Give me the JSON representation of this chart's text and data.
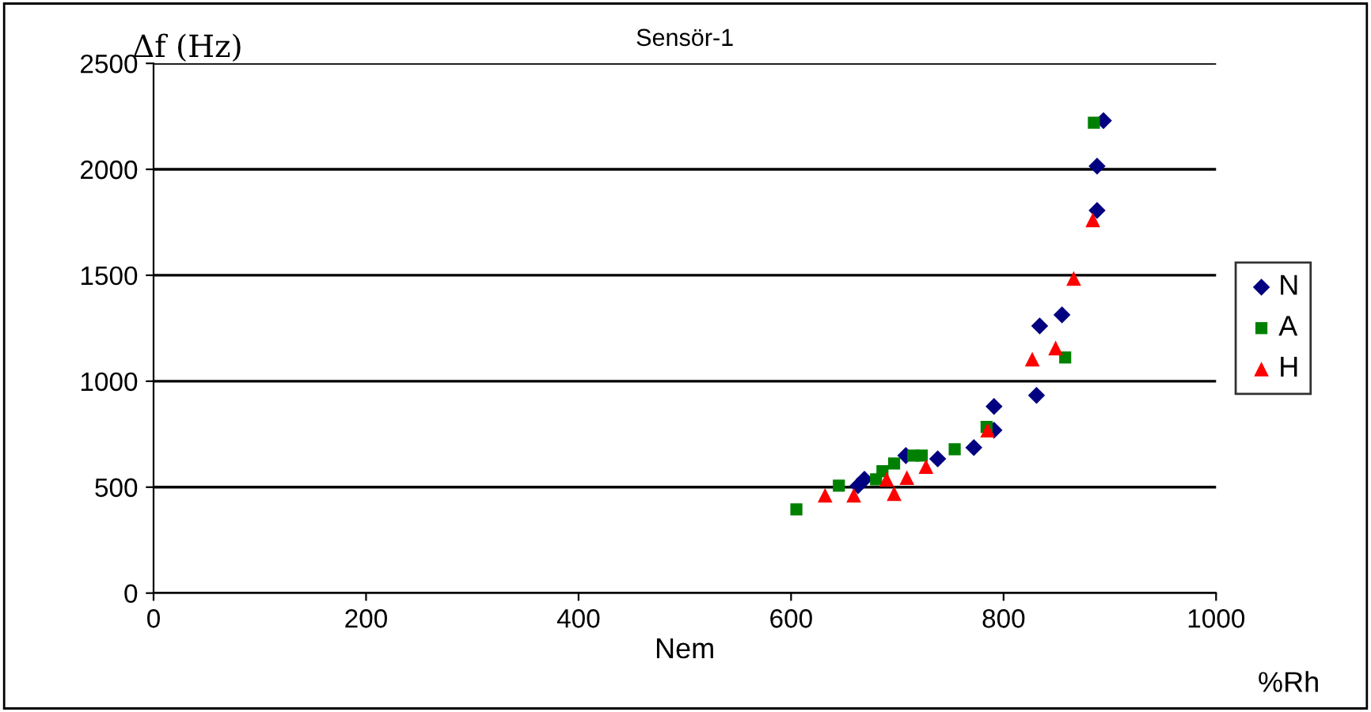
{
  "chart_data": {
    "type": "scatter",
    "title": "Sensör-1",
    "xlabel": "Nem",
    "ylabel": "Δf (Hz)",
    "annotations": [
      "%Rh"
    ],
    "xlim": [
      0,
      1000
    ],
    "xticks": [
      0,
      200,
      400,
      600,
      800,
      1000
    ],
    "ylim": [
      0,
      2500
    ],
    "yticks": [
      0,
      500,
      1000,
      1500,
      2000,
      2500
    ],
    "grid": "y",
    "legend": "right",
    "series": [
      {
        "name": "N",
        "color": "#000080",
        "marker": "diamond",
        "x": [
          894,
          888,
          888,
          855,
          834,
          831,
          663,
          669,
          708,
          738,
          772,
          791,
          791
        ],
        "values": [
          2230,
          2015,
          1806,
          1313,
          1261,
          933,
          507,
          537,
          649,
          634,
          687,
          881,
          769
        ]
      },
      {
        "name": "A",
        "color": "#008000",
        "marker": "square",
        "x": [
          885,
          858,
          605,
          645,
          680,
          686,
          697,
          715,
          723,
          754,
          784
        ],
        "values": [
          2220,
          1112,
          395,
          507,
          537,
          575,
          612,
          649,
          649,
          679,
          784
        ]
      },
      {
        "name": "H",
        "color": "#ff0000",
        "marker": "triangle",
        "x": [
          884,
          866,
          849,
          827,
          632,
          659,
          690,
          697,
          709,
          727,
          785
        ],
        "values": [
          1761,
          1485,
          1157,
          1104,
          462,
          462,
          537,
          470,
          545,
          597,
          769
        ]
      }
    ]
  }
}
